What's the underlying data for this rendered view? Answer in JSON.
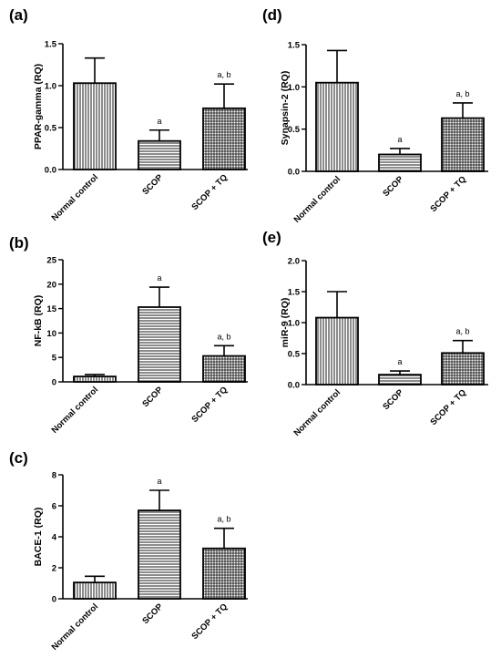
{
  "chart_data": [
    {
      "panel": "(a)",
      "type": "bar",
      "categories": [
        "Normal control",
        "SCOP",
        "SCOP + TQ"
      ],
      "values": [
        1.03,
        0.34,
        0.73
      ],
      "errors": [
        0.3,
        0.13,
        0.29
      ],
      "annotations": [
        "",
        "a",
        "a, b"
      ],
      "patterns": [
        "vertical",
        "horizontal",
        "grid"
      ],
      "ylabel": "PPAR-gamma (RQ)",
      "xlabel": "",
      "ylim": [
        0,
        1.5
      ],
      "yticks": [
        0.0,
        0.5,
        1.0,
        1.5
      ],
      "ytick_labels": [
        "0.0",
        "0.5",
        "1.0",
        "1.5"
      ]
    },
    {
      "panel": "(b)",
      "type": "bar",
      "categories": [
        "Normal control",
        "SCOP",
        "SCOP + TQ"
      ],
      "values": [
        1.1,
        15.3,
        5.3
      ],
      "errors": [
        0.4,
        4.1,
        2.1
      ],
      "annotations": [
        "",
        "a",
        "a, b"
      ],
      "patterns": [
        "vertical",
        "horizontal",
        "grid"
      ],
      "ylabel": "NF-kB (RQ)",
      "xlabel": "",
      "ylim": [
        0,
        25
      ],
      "yticks": [
        0,
        5,
        10,
        15,
        20,
        25
      ],
      "ytick_labels": [
        "0",
        "5",
        "10",
        "15",
        "20",
        "25"
      ]
    },
    {
      "panel": "(c)",
      "type": "bar",
      "categories": [
        "Normal control",
        "SCOP",
        "SCOP + TQ"
      ],
      "values": [
        1.05,
        5.7,
        3.25
      ],
      "errors": [
        0.4,
        1.3,
        1.3
      ],
      "annotations": [
        "",
        "a",
        "a, b"
      ],
      "patterns": [
        "vertical",
        "horizontal",
        "grid"
      ],
      "ylabel": "BACE-1 (RQ)",
      "xlabel": "",
      "ylim": [
        0,
        8
      ],
      "yticks": [
        0,
        2,
        4,
        6,
        8
      ],
      "ytick_labels": [
        "0",
        "2",
        "4",
        "6",
        "8"
      ]
    },
    {
      "panel": "(d)",
      "type": "bar",
      "categories": [
        "Normal control",
        "SCOP",
        "SCOP + TQ"
      ],
      "values": [
        1.05,
        0.2,
        0.63
      ],
      "errors": [
        0.38,
        0.07,
        0.18
      ],
      "annotations": [
        "",
        "a",
        "a, b"
      ],
      "patterns": [
        "vertical",
        "horizontal",
        "grid"
      ],
      "ylabel": "Synapsin-2 (RQ)",
      "xlabel": "",
      "ylim": [
        0,
        1.5
      ],
      "yticks": [
        0.0,
        0.5,
        1.0,
        1.5
      ],
      "ytick_labels": [
        "0.0",
        "0.5",
        "1.0",
        "1.5"
      ]
    },
    {
      "panel": "(e)",
      "type": "bar",
      "categories": [
        "Normal control",
        "SCOP",
        "SCOP + TQ"
      ],
      "values": [
        1.08,
        0.16,
        0.51
      ],
      "errors": [
        0.42,
        0.06,
        0.2
      ],
      "annotations": [
        "",
        "a",
        "a, b"
      ],
      "patterns": [
        "vertical",
        "horizontal",
        "grid"
      ],
      "ylabel": "miR-9 (RQ)",
      "xlabel": "",
      "ylim": [
        0,
        2.0
      ],
      "yticks": [
        0.0,
        0.5,
        1.0,
        1.5,
        2.0
      ],
      "ytick_labels": [
        "0.0",
        "0.5",
        "1.0",
        "1.5",
        "2.0"
      ]
    }
  ]
}
